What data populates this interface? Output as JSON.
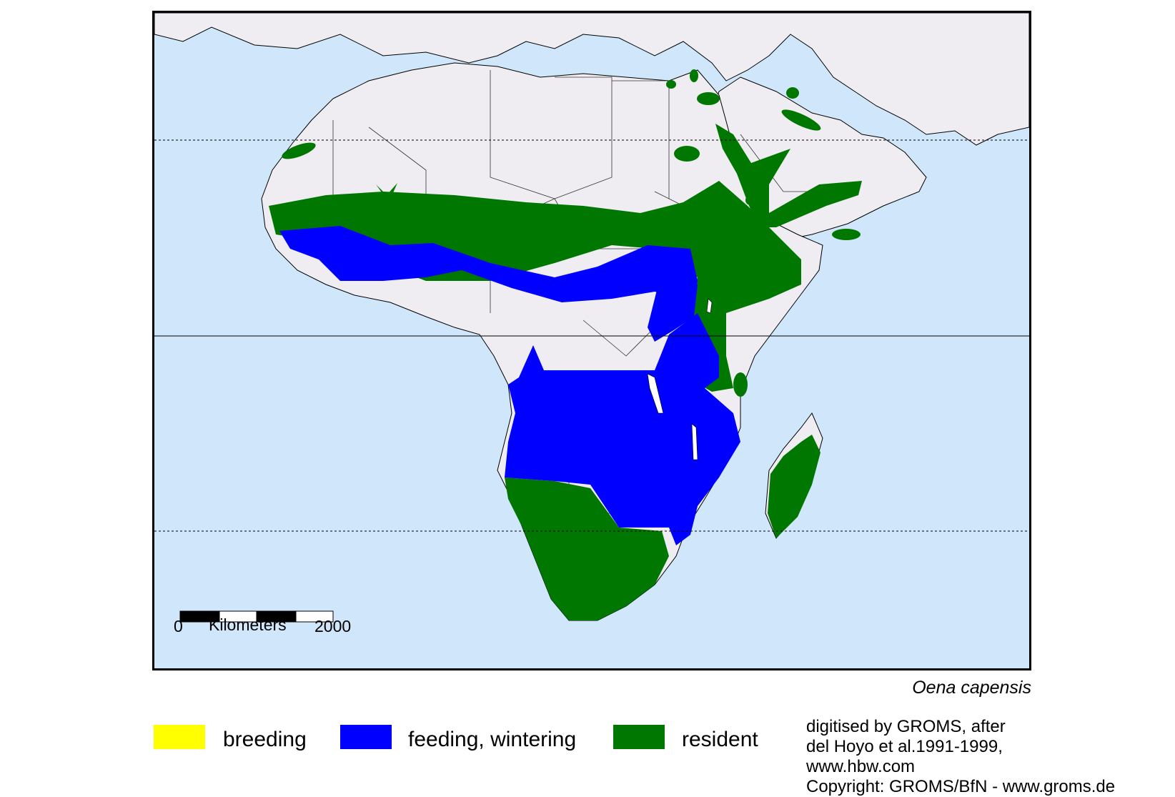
{
  "map": {
    "colors": {
      "ocean": "#d0e6fa",
      "land": "#efedf1",
      "breeding": "#ffff00",
      "feeding": "#0000ff",
      "resident": "#007700"
    },
    "scale_bar": {
      "start": "0",
      "unit": "Kilometers",
      "end": "2000"
    },
    "species": "Oena capensis"
  },
  "legend": [
    {
      "label": "breeding",
      "color": "#ffff00"
    },
    {
      "label": "feeding, wintering",
      "color": "#0000ff"
    },
    {
      "label": "resident",
      "color": "#007700"
    }
  ],
  "credits": [
    "digitised by GROMS, after",
    "del Hoyo et al.1991-1999,",
    "www.hbw.com",
    "Copyright: GROMS/BfN - www.groms.de"
  ]
}
